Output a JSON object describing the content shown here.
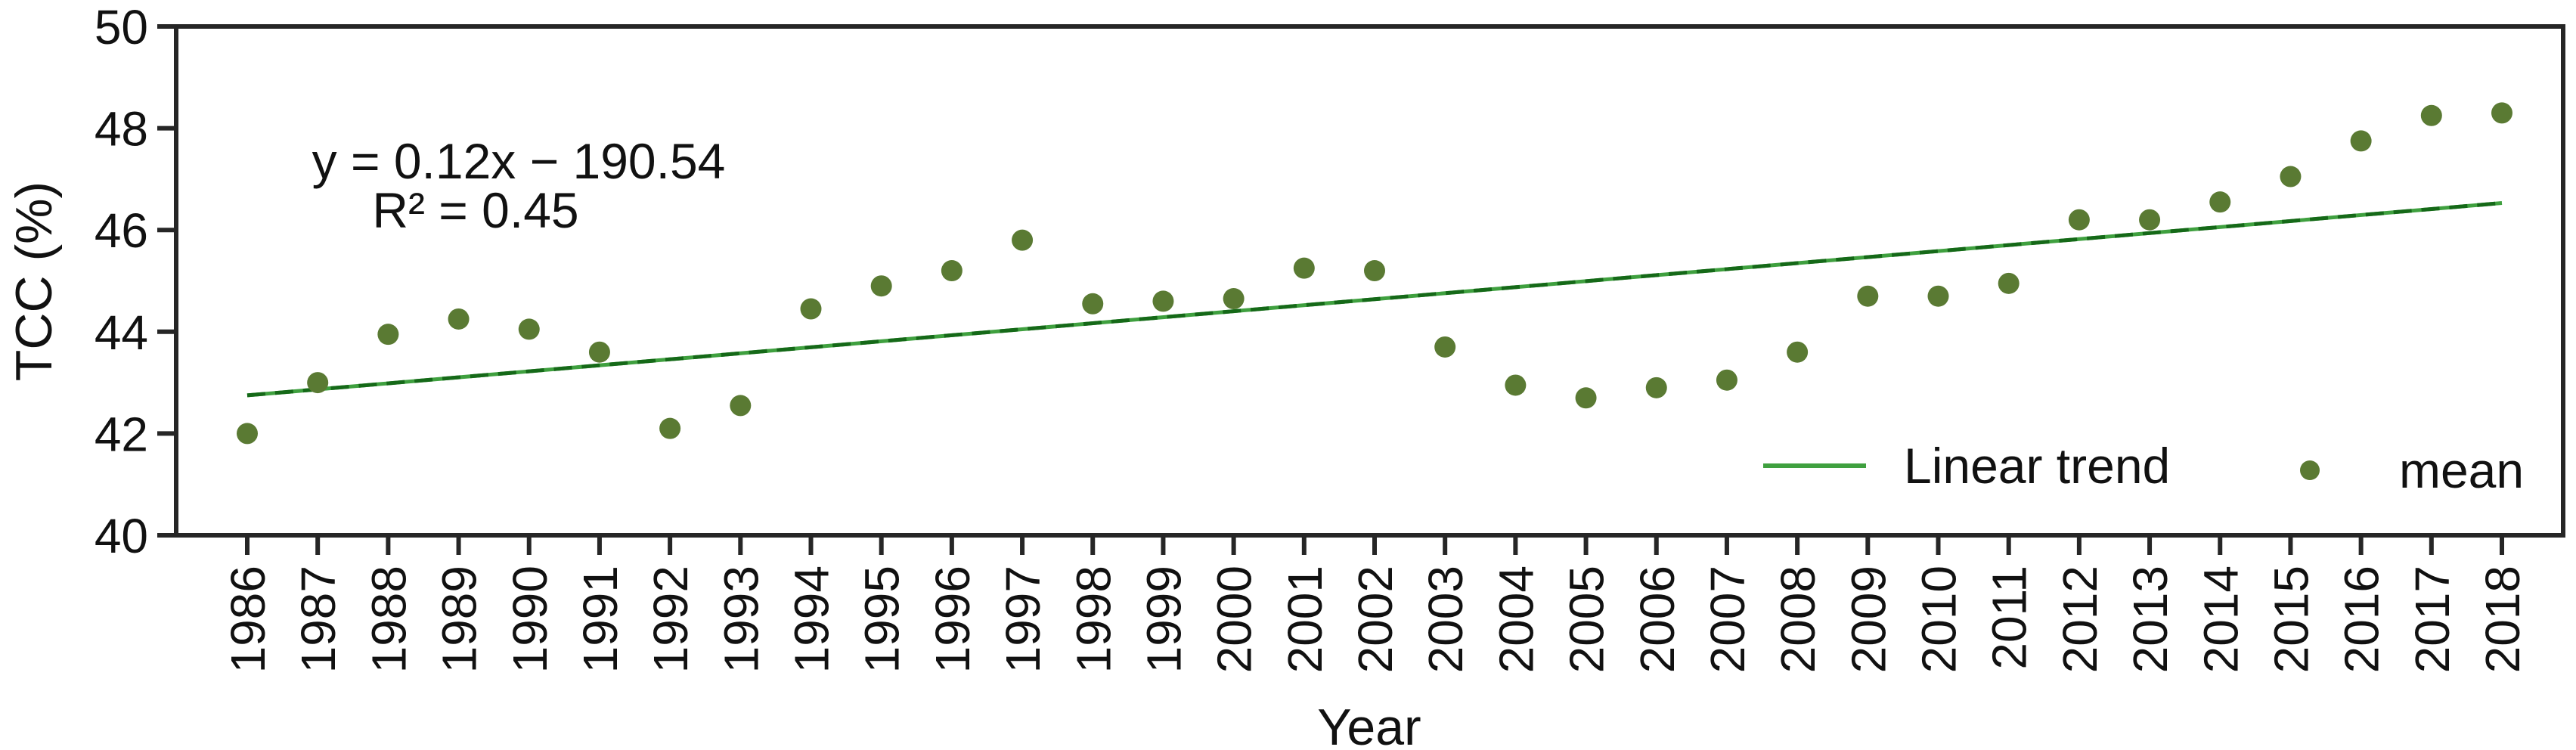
{
  "chart_data": {
    "type": "scatter",
    "title": "",
    "xlabel": "Year",
    "ylabel": "TCC (%)",
    "ylim": [
      40,
      50
    ],
    "yticks": [
      40,
      42,
      44,
      46,
      48,
      50
    ],
    "grid": false,
    "x": [
      1986,
      1987,
      1988,
      1989,
      1990,
      1991,
      1992,
      1993,
      1994,
      1995,
      1996,
      1997,
      1998,
      1999,
      2000,
      2001,
      2002,
      2003,
      2004,
      2005,
      2006,
      2007,
      2008,
      2009,
      2010,
      2011,
      2012,
      2013,
      2014,
      2015,
      2016,
      2017,
      2018
    ],
    "series": [
      {
        "name": "mean",
        "marker": "dot",
        "values": [
          42.0,
          43.0,
          43.95,
          44.25,
          44.05,
          43.6,
          42.1,
          42.55,
          44.45,
          44.9,
          45.2,
          45.8,
          44.55,
          44.6,
          44.65,
          45.25,
          45.2,
          43.7,
          42.95,
          42.7,
          42.9,
          43.05,
          43.6,
          44.7,
          44.7,
          44.95,
          46.2,
          46.2,
          46.55,
          47.05,
          47.75,
          48.25,
          48.3
        ]
      }
    ],
    "trend_line": {
      "label": "Linear trend",
      "x_start": 1986,
      "y_start": 42.75,
      "x_end": 2018,
      "y_end": 46.53
    },
    "annotations": {
      "equation": "y = 0.12x − 190.54",
      "r_squared": "R² = 0.45"
    },
    "legend": {
      "position": "inside-bottom-right",
      "entries": [
        {
          "label": "Linear trend",
          "marker": "line"
        },
        {
          "label": "mean",
          "marker": "dot"
        }
      ]
    },
    "colors": {
      "dot": "#5A7A33",
      "trend_solid": "#3FA03F",
      "trend_dash": "#156918",
      "axis": "#262626",
      "text": "#111111",
      "background": "#ffffff"
    }
  }
}
